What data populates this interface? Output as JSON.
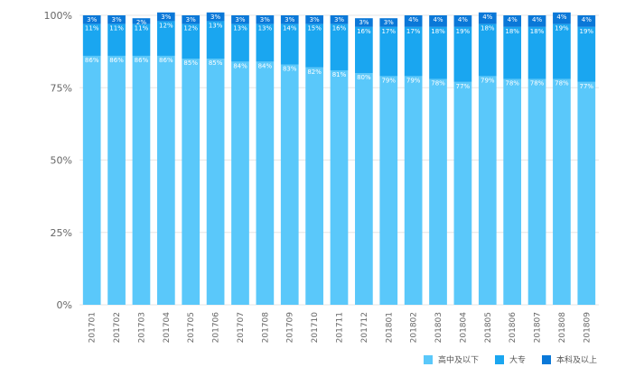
{
  "chart_data": {
    "type": "bar",
    "stacked": true,
    "percent": true,
    "categories": [
      "201701",
      "201702",
      "201703",
      "201704",
      "201705",
      "201706",
      "201707",
      "201708",
      "201709",
      "201710",
      "201711",
      "201712",
      "201801",
      "201802",
      "201803",
      "201804",
      "201805",
      "201806",
      "201807",
      "201808",
      "201809"
    ],
    "series": [
      {
        "name": "高中及以下",
        "color": "#5ac8fa",
        "values": [
          86,
          86,
          86,
          86,
          85,
          85,
          84,
          84,
          83,
          82,
          81,
          80,
          79,
          79,
          78,
          77,
          79,
          78,
          78,
          78,
          77
        ]
      },
      {
        "name": "大专",
        "color": "#1aa6f0",
        "values": [
          11,
          11,
          11,
          12,
          12,
          13,
          13,
          13,
          14,
          15,
          16,
          16,
          17,
          17,
          18,
          19,
          18,
          18,
          18,
          19,
          19
        ]
      },
      {
        "name": "本科及以上",
        "color": "#0a78d8",
        "values": [
          3,
          3,
          2,
          3,
          3,
          3,
          3,
          3,
          3,
          3,
          3,
          3,
          3,
          4,
          4,
          4,
          4,
          4,
          4,
          4,
          4
        ]
      }
    ],
    "ylim": [
      0,
      100
    ],
    "yticks": [
      "0%",
      "25%",
      "50%",
      "75%",
      "100%"
    ],
    "grid": true,
    "legend": "bottom-right"
  }
}
